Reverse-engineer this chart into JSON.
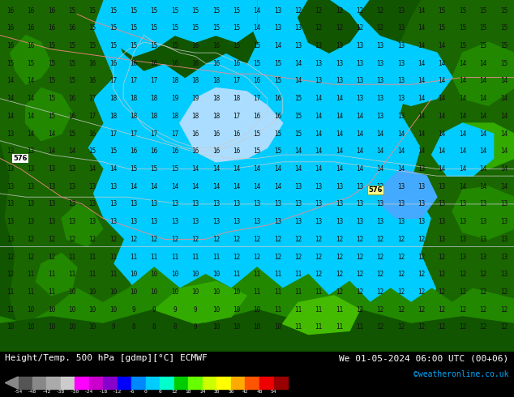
{
  "title_left": "Height/Temp. 500 hPa [gdmp][°C] ECMWF",
  "title_right": "We 01-05-2024 06:00 UTC (00+06)",
  "credit": "©weatheronline.co.uk",
  "colorbar_tick_labels": [
    "-54",
    "-48",
    "-42",
    "-38",
    "-30",
    "-24",
    "-18",
    "-12",
    "-6",
    "0",
    "6",
    "12",
    "18",
    "24",
    "30",
    "36",
    "42",
    "48",
    "54"
  ],
  "colorbar_colors": [
    "#555555",
    "#888888",
    "#aaaaaa",
    "#cccccc",
    "#ff00ff",
    "#cc00cc",
    "#8800cc",
    "#0000ff",
    "#0088ff",
    "#00ccff",
    "#00ffcc",
    "#00cc00",
    "#66ff00",
    "#ccff00",
    "#ffff00",
    "#ffaa00",
    "#ff5500",
    "#ee0000",
    "#990000"
  ],
  "bg_map": "#00ccff",
  "bg_bottom": "#006600",
  "fig_bg": "#000000",
  "land_dark": "#115500",
  "land_med": "#1a7700",
  "land_light": "#33aa00",
  "land_bright": "#44cc00",
  "ocean_cyan": "#00ccff",
  "high_blue": "#88ccff",
  "white": "#ffffff",
  "pink_contour": "#ffaaaa",
  "gray_contour": "#cccccc",
  "label_color": "#000000",
  "credit_color": "#00aaff",
  "yellow_box": "#ffff00",
  "figsize": [
    6.34,
    4.9
  ],
  "dpi": 100
}
